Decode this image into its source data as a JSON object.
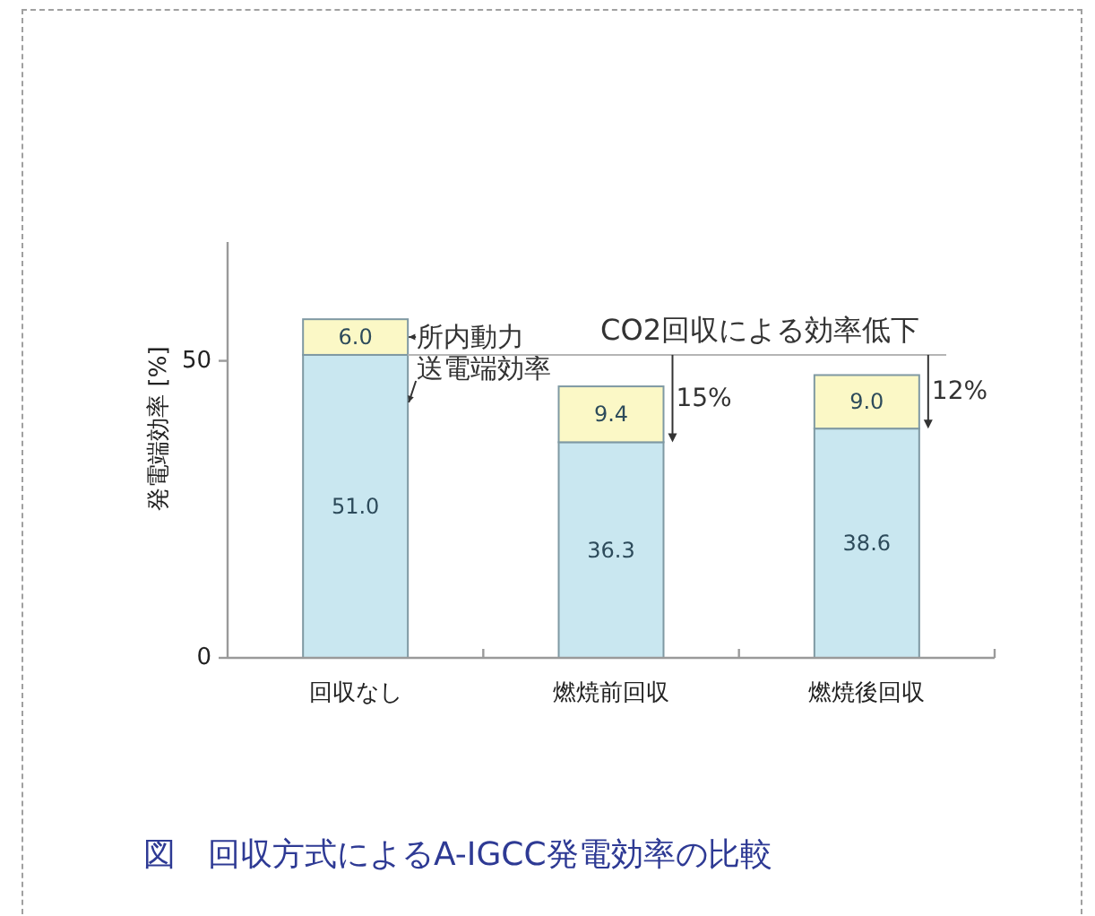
{
  "chart_data": {
    "type": "bar",
    "stacked": true,
    "title": "図　回収方式によるA-IGCC発電効率の比較",
    "ylabel": "発電端効率 [%]",
    "categories": [
      "回収なし",
      "燃焼前回収",
      "燃焼後回収"
    ],
    "series": [
      {
        "name": "送電端効率",
        "color": "#c9e7f0",
        "values": [
          51.0,
          36.3,
          38.6
        ],
        "value_labels": [
          "51.0",
          "36.3",
          "38.6"
        ]
      },
      {
        "name": "所内動力",
        "color": "#fbf8c6",
        "values": [
          6.0,
          9.4,
          9.0
        ],
        "value_labels": [
          "6.0",
          "9.4",
          "9.0"
        ]
      }
    ],
    "ylim": [
      0,
      70
    ],
    "yticks": [
      0,
      50
    ],
    "ref_lines": [
      {
        "axis": "y",
        "value": 51.0,
        "label": "CO2回収による効率低下"
      }
    ],
    "annotations": [
      {
        "text": "15%",
        "x": "燃焼前回収",
        "y": 36.3
      },
      {
        "text": "12%",
        "x": "燃焼後回収",
        "y": 38.6
      }
    ]
  }
}
